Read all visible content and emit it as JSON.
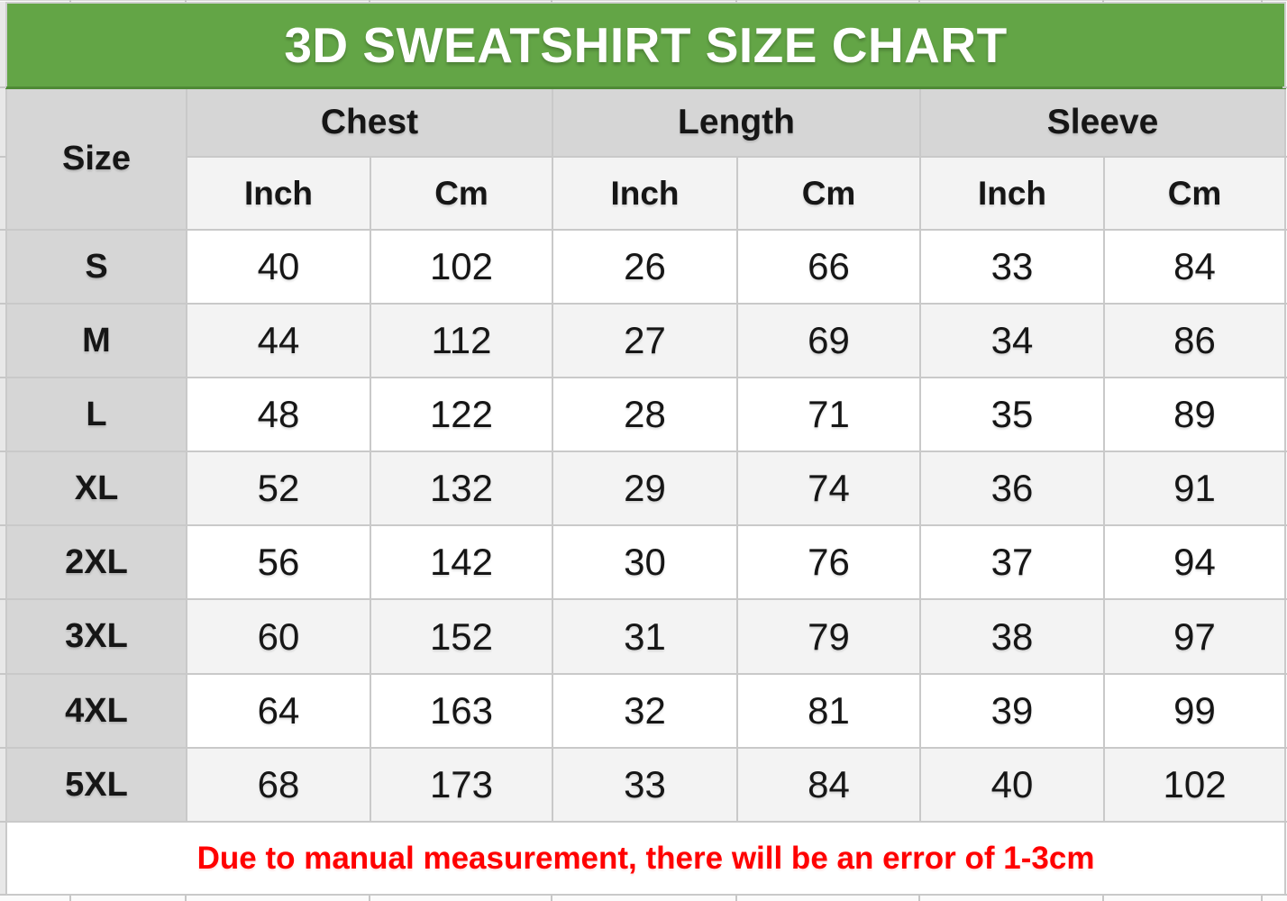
{
  "title": "3D SWEATSHIRT SIZE CHART",
  "chart_data": {
    "type": "table",
    "title": "3D SWEATSHIRT SIZE CHART",
    "size_header": "Size",
    "groups": [
      {
        "label": "Chest",
        "sub": [
          "Inch",
          "Cm"
        ]
      },
      {
        "label": "Length",
        "sub": [
          "Inch",
          "Cm"
        ]
      },
      {
        "label": "Sleeve",
        "sub": [
          "Inch",
          "Cm"
        ]
      }
    ],
    "columns": [
      "Size",
      "Chest Inch",
      "Chest Cm",
      "Length Inch",
      "Length Cm",
      "Sleeve Inch",
      "Sleeve Cm"
    ],
    "rows": [
      [
        "S",
        40,
        102,
        26,
        66,
        33,
        84
      ],
      [
        "M",
        44,
        112,
        27,
        69,
        34,
        86
      ],
      [
        "L",
        48,
        122,
        28,
        71,
        35,
        89
      ],
      [
        "XL",
        52,
        132,
        29,
        74,
        36,
        91
      ],
      [
        "2XL",
        56,
        142,
        30,
        76,
        37,
        94
      ],
      [
        "3XL",
        60,
        152,
        31,
        79,
        38,
        97
      ],
      [
        "4XL",
        64,
        163,
        32,
        81,
        39,
        99
      ],
      [
        "5XL",
        68,
        173,
        33,
        84,
        40,
        102
      ]
    ],
    "note": "Due to manual measurement, there will be an error of 1-3cm"
  },
  "colors": {
    "header_green": "#63a546",
    "header_green_dark": "#4f8a36",
    "group_gray": "#d6d6d6",
    "light_gray": "#f3f3f3",
    "note_red": "#ff0000",
    "border": "#c9c9c9",
    "title_text": "#ffffff"
  }
}
